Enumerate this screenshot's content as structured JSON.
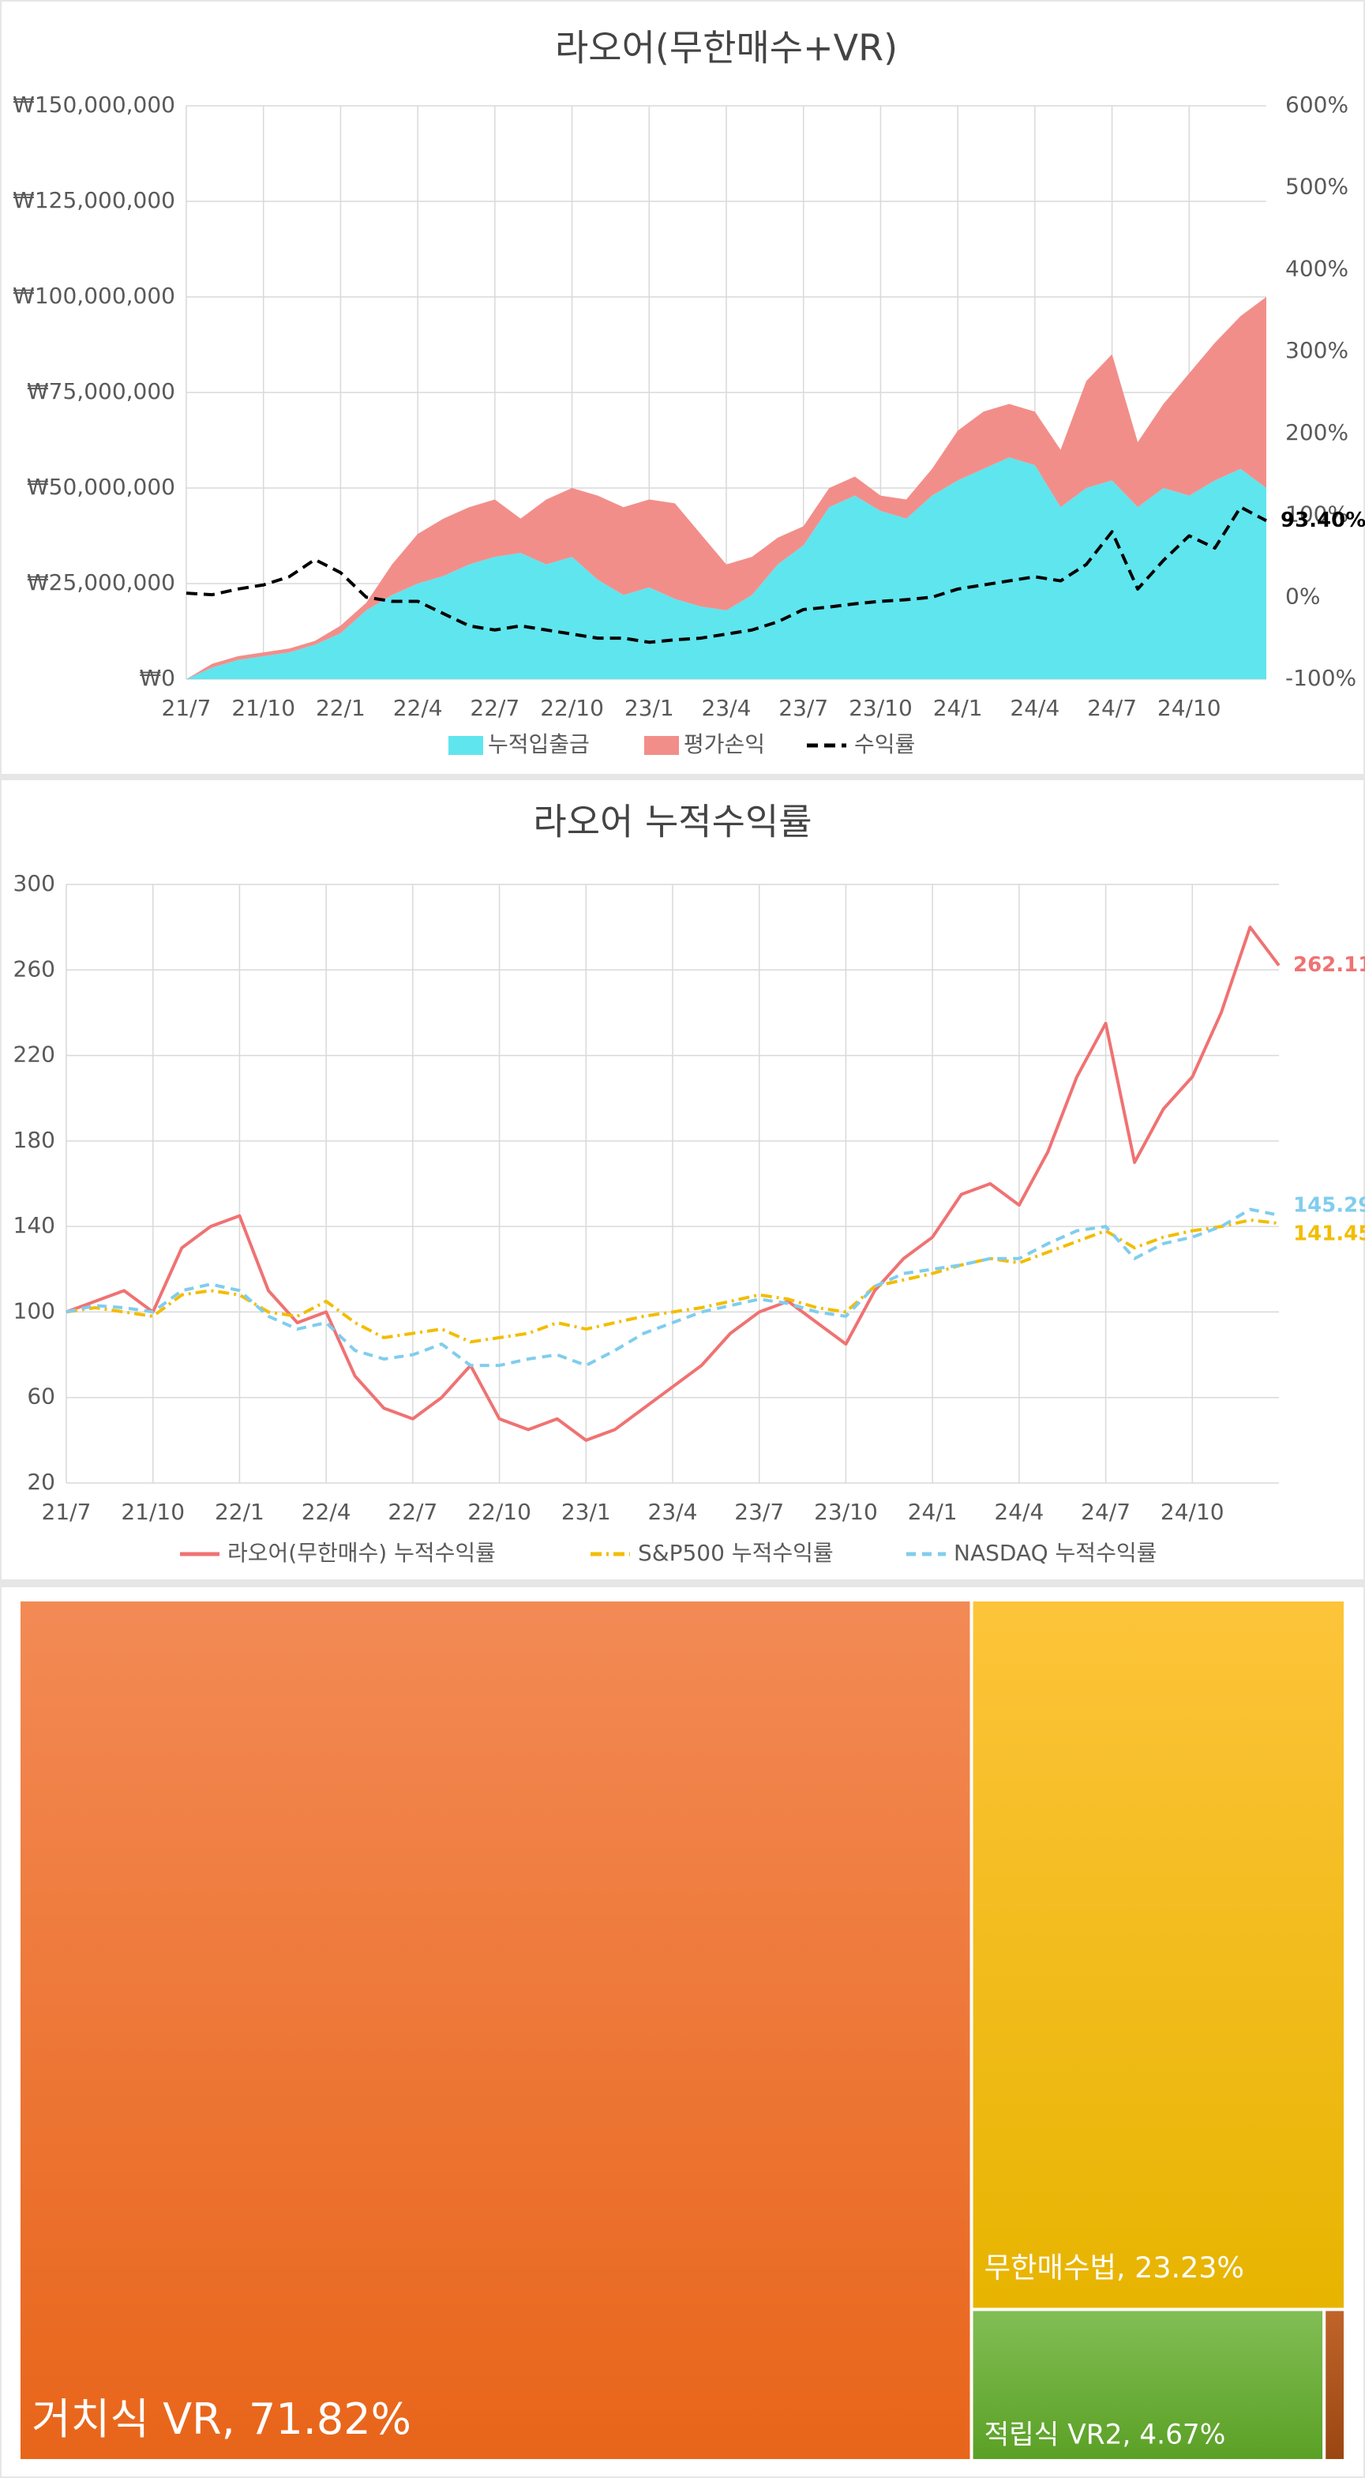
{
  "chart_data": [
    {
      "type": "area",
      "title": "라오어(무한매수+VR)",
      "stacked": true,
      "grid": true,
      "legend": "bottom",
      "categories": [
        "21/7",
        null,
        null,
        "21/10",
        null,
        null,
        "22/1",
        null,
        null,
        "22/4",
        null,
        null,
        "22/7",
        null,
        null,
        "22/10",
        null,
        null,
        "23/1",
        null,
        null,
        "23/4",
        null,
        null,
        "23/7",
        null,
        null,
        "23/10",
        null,
        null,
        "24/1",
        null,
        null,
        "24/4",
        null,
        null,
        "24/7",
        null,
        null,
        "24/10",
        null,
        null,
        null
      ],
      "series": [
        {
          "name": "누적입출금",
          "color": "#5fe5ee",
          "values": [
            0,
            3000000,
            5000000,
            6000000,
            7000000,
            9000000,
            12000000,
            18000000,
            22000000,
            25000000,
            27000000,
            30000000,
            32000000,
            33000000,
            30000000,
            32000000,
            26000000,
            22000000,
            24000000,
            21000000,
            19000000,
            18000000,
            22000000,
            30000000,
            35000000,
            45000000,
            48000000,
            44000000,
            42000000,
            48000000,
            52000000,
            55000000,
            58000000,
            56000000,
            45000000,
            50000000,
            52000000,
            45000000,
            50000000,
            48000000,
            52000000,
            55000000,
            50000000
          ]
        },
        {
          "name": "평가손익",
          "color": "#f28e8a",
          "values": [
            0,
            1000000,
            1000000,
            1000000,
            1000000,
            1000000,
            2000000,
            2000000,
            8000000,
            13000000,
            15000000,
            15000000,
            15000000,
            9000000,
            17000000,
            18000000,
            22000000,
            23000000,
            23000000,
            25000000,
            19000000,
            12000000,
            10000000,
            7000000,
            5000000,
            5000000,
            5000000,
            4000000,
            5000000,
            7000000,
            13000000,
            15000000,
            14000000,
            14000000,
            15000000,
            28000000,
            33000000,
            17000000,
            22000000,
            32000000,
            36000000,
            40000000,
            50000000
          ]
        },
        {
          "name": "수익률",
          "color": "#000000",
          "axis": "y2",
          "dash": true,
          "values": [
            5,
            3,
            10,
            15,
            25,
            46,
            30,
            0,
            -5,
            -5,
            -20,
            -35,
            -40,
            -35,
            -40,
            -45,
            -50,
            -50,
            -55,
            -52,
            -50,
            -45,
            -40,
            -30,
            -15,
            -12,
            -8,
            -5,
            -3,
            0,
            10,
            15,
            20,
            25,
            20,
            40,
            80,
            10,
            45,
            75,
            60,
            110,
            93.4
          ],
          "value_labels": [
            null,
            null,
            null,
            null,
            null,
            null,
            null,
            null,
            null,
            null,
            null,
            null,
            null,
            null,
            null,
            null,
            null,
            null,
            null,
            null,
            null,
            null,
            null,
            null,
            null,
            null,
            null,
            null,
            null,
            null,
            null,
            null,
            null,
            null,
            null,
            null,
            null,
            null,
            null,
            null,
            null,
            null,
            "93.40%"
          ]
        }
      ],
      "ylim": [
        0,
        150000000
      ],
      "yticks": [
        {
          "value": 0,
          "label": "₩0"
        },
        {
          "value": 25000000,
          "label": "₩25,000,000"
        },
        {
          "value": 50000000,
          "label": "₩50,000,000"
        },
        {
          "value": 75000000,
          "label": "₩75,000,000"
        },
        {
          "value": 100000000,
          "label": "₩100,000,000"
        },
        {
          "value": 125000000,
          "label": "₩125,000,000"
        },
        {
          "value": 150000000,
          "label": "₩150,000,000"
        }
      ],
      "y2lim": [
        -100,
        600
      ],
      "y2ticks": [
        {
          "value": -100,
          "label": "-100%"
        },
        {
          "value": 0,
          "label": "0%"
        },
        {
          "value": 100,
          "label": "100%"
        },
        {
          "value": 200,
          "label": "200%"
        },
        {
          "value": 300,
          "label": "300%"
        },
        {
          "value": 400,
          "label": "400%"
        },
        {
          "value": 500,
          "label": "500%"
        },
        {
          "value": 600,
          "label": "600%"
        }
      ]
    },
    {
      "type": "line",
      "title": "라오어 누적수익률",
      "grid": true,
      "legend": "bottom",
      "categories": [
        "21/7",
        null,
        null,
        "21/10",
        null,
        null,
        "22/1",
        null,
        null,
        "22/4",
        null,
        null,
        "22/7",
        null,
        null,
        "22/10",
        null,
        null,
        "23/1",
        null,
        null,
        "23/4",
        null,
        null,
        "23/7",
        null,
        null,
        "23/10",
        null,
        null,
        "24/1",
        null,
        null,
        "24/4",
        null,
        null,
        "24/7",
        null,
        null,
        "24/10",
        null,
        null,
        null
      ],
      "series": [
        {
          "name": "라오어(무한매수) 누적수익률",
          "color": "#f07272",
          "values": [
            100,
            105,
            110,
            100,
            130,
            140,
            145,
            110,
            95,
            100,
            70,
            55,
            50,
            60,
            75,
            50,
            45,
            50,
            40,
            45,
            55,
            65,
            75,
            90,
            100,
            105,
            95,
            85,
            110,
            125,
            135,
            155,
            160,
            150,
            175,
            210,
            235,
            170,
            195,
            210,
            240,
            280,
            262.11
          ],
          "value_labels": [
            null,
            null,
            null,
            null,
            null,
            null,
            null,
            null,
            null,
            null,
            null,
            null,
            null,
            null,
            null,
            null,
            null,
            null,
            null,
            null,
            null,
            null,
            null,
            null,
            null,
            null,
            null,
            null,
            null,
            null,
            null,
            null,
            null,
            null,
            null,
            null,
            null,
            null,
            null,
            null,
            null,
            null,
            "262.11"
          ]
        },
        {
          "name": "S&P500 누적수익률",
          "color": "#f2bd00",
          "dash": "dashdot",
          "values": [
            100,
            102,
            100,
            98,
            108,
            110,
            108,
            100,
            98,
            105,
            95,
            88,
            90,
            92,
            86,
            88,
            90,
            95,
            92,
            95,
            98,
            100,
            102,
            105,
            108,
            106,
            102,
            100,
            112,
            115,
            118,
            122,
            125,
            123,
            128,
            133,
            138,
            130,
            135,
            138,
            140,
            143,
            141.45
          ],
          "value_labels": [
            null,
            null,
            null,
            null,
            null,
            null,
            null,
            null,
            null,
            null,
            null,
            null,
            null,
            null,
            null,
            null,
            null,
            null,
            null,
            null,
            null,
            null,
            null,
            null,
            null,
            null,
            null,
            null,
            null,
            null,
            null,
            null,
            null,
            null,
            null,
            null,
            null,
            null,
            null,
            null,
            null,
            null,
            "141.45"
          ]
        },
        {
          "name": "NASDAQ 누적수익률",
          "color": "#80cdee",
          "dash": "dash",
          "values": [
            100,
            103,
            102,
            100,
            110,
            113,
            110,
            98,
            92,
            95,
            82,
            78,
            80,
            85,
            75,
            75,
            78,
            80,
            75,
            82,
            90,
            95,
            100,
            103,
            106,
            104,
            100,
            98,
            112,
            118,
            120,
            122,
            125,
            125,
            132,
            138,
            140,
            125,
            132,
            135,
            140,
            148,
            145.29
          ],
          "value_labels": [
            null,
            null,
            null,
            null,
            null,
            null,
            null,
            null,
            null,
            null,
            null,
            null,
            null,
            null,
            null,
            null,
            null,
            null,
            null,
            null,
            null,
            null,
            null,
            null,
            null,
            null,
            null,
            null,
            null,
            null,
            null,
            null,
            null,
            null,
            null,
            null,
            null,
            null,
            null,
            null,
            null,
            null,
            "145.29"
          ]
        }
      ],
      "ylim": [
        20,
        300
      ],
      "yticks": [
        20,
        60,
        100,
        140,
        180,
        220,
        260,
        300
      ]
    },
    {
      "type": "treemap",
      "values": [
        71.82,
        23.23,
        4.67,
        0.28
      ],
      "value_labels": [
        "거치식 VR, 71.82%",
        "무한매수법, 23.23%",
        "적립식 VR2, 4.67%",
        null
      ],
      "colors": [
        "#f07a2e",
        "#f8c21c",
        "#6cad3a",
        "#b0561c"
      ]
    }
  ]
}
